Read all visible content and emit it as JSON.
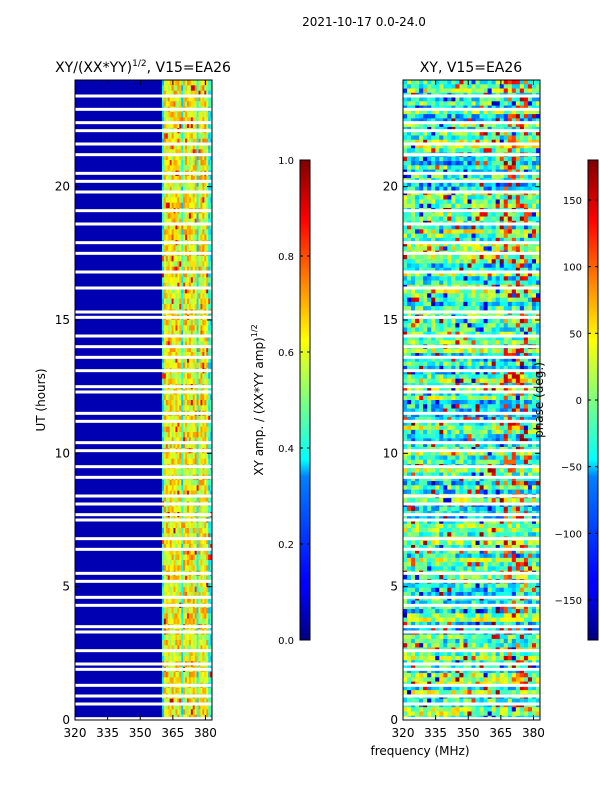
{
  "figure": {
    "suptitle": "2021-10-17 0.0-24.0",
    "shared_xlabel": "frequency (MHz)"
  },
  "chart_data": [
    {
      "type": "heatmap",
      "title_main": "XY/(XX*YY)",
      "title_exp": "1/2",
      "title_rest": ", V15=EA26",
      "xlabel": "",
      "ylabel": "UT (hours)",
      "xlim": [
        320,
        383
      ],
      "ylim": [
        0,
        24
      ],
      "xticks": [
        320,
        335,
        350,
        365,
        380
      ],
      "yticks": [
        0,
        5,
        10,
        15,
        20
      ],
      "colorbar": {
        "label_main": "XY amp. / (XX*YY amp)",
        "label_exp": "1/2",
        "range": [
          0.0,
          1.0
        ],
        "ticks": [
          "0.0",
          "0.2",
          "0.4",
          "0.6",
          "0.8",
          "1.0"
        ],
        "tick_values": [
          0.0,
          0.2,
          0.4,
          0.6,
          0.8,
          1.0
        ],
        "colormap": "jet"
      },
      "band_start_mhz": 360,
      "hot_channels_mhz": [
        362,
        364,
        366,
        368,
        371,
        373,
        375,
        378,
        380
      ],
      "flagged_ut_hours": [
        0.05,
        0.6,
        0.9,
        1.3,
        1.9,
        2.1,
        2.6,
        3.3,
        3.5,
        4.3,
        4.6,
        5.2,
        5.5,
        6.4,
        6.8,
        7.5,
        7.7,
        8.1,
        8.4,
        9.1,
        9.5,
        10.1,
        10.4,
        11.2,
        11.5,
        12.3,
        12.5,
        13.1,
        13.6,
        14.0,
        14.4,
        15.1,
        15.3,
        16.2,
        16.8,
        17.5,
        17.9,
        18.6,
        19.1,
        19.8,
        20.2,
        20.5,
        21.2,
        21.6,
        22.1,
        22.4,
        22.9,
        23.4
      ]
    },
    {
      "type": "heatmap",
      "title_main": "XY, V15=EA26",
      "xlabel": "frequency (MHz)",
      "ylabel": "",
      "xlim": [
        320,
        383
      ],
      "ylim": [
        0,
        24
      ],
      "xticks": [
        320,
        335,
        350,
        365,
        380
      ],
      "yticks": [
        0,
        5,
        10,
        15,
        20
      ],
      "colorbar": {
        "label_main": "phase (deg.)",
        "range": [
          -180,
          180
        ],
        "ticks": [
          "150",
          "100",
          "50",
          "0",
          "−50",
          "−100",
          "−150"
        ],
        "tick_values": [
          150,
          100,
          50,
          0,
          -50,
          -100,
          -150
        ],
        "colormap": "jet"
      },
      "flagged_ut_hours": [
        0.05,
        0.6,
        0.9,
        1.3,
        1.9,
        2.1,
        2.6,
        3.3,
        3.5,
        4.3,
        4.6,
        5.2,
        5.5,
        6.4,
        6.8,
        7.5,
        7.7,
        8.1,
        8.4,
        9.1,
        9.5,
        10.1,
        10.4,
        11.2,
        11.5,
        12.3,
        12.5,
        13.1,
        13.6,
        14.0,
        14.4,
        15.1,
        15.3,
        16.2,
        16.8,
        17.5,
        17.9,
        18.6,
        19.1,
        19.8,
        20.2,
        20.5,
        21.2,
        21.6,
        22.1,
        22.4,
        22.9,
        23.4
      ]
    }
  ]
}
